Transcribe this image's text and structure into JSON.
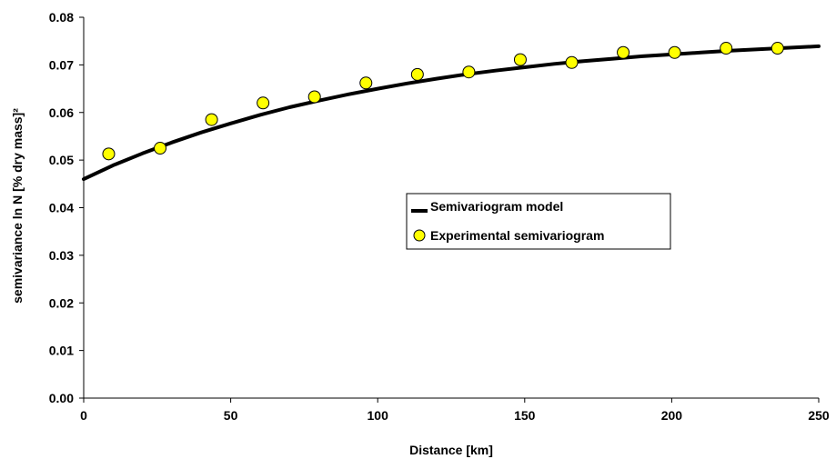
{
  "chart_data": {
    "type": "scatter",
    "xlabel": "Distance [km]",
    "ylabel": "semivariance ln N [% dry mass]²",
    "xlim": [
      0,
      250
    ],
    "ylim": [
      0,
      0.08
    ],
    "x_ticks": [
      "0",
      "50",
      "100",
      "150",
      "200",
      "250"
    ],
    "y_ticks": [
      "0.00",
      "0.01",
      "0.02",
      "0.03",
      "0.04",
      "0.05",
      "0.06",
      "0.07",
      "0.08"
    ],
    "grid": false,
    "legend_position": "center-right",
    "series": [
      {
        "name": "Semivariogram model",
        "kind": "line",
        "color": "#000000",
        "x": [
          0,
          10,
          20,
          30,
          40,
          50,
          60,
          70,
          80,
          90,
          100,
          110,
          120,
          130,
          140,
          150,
          160,
          170,
          180,
          190,
          200,
          210,
          220,
          230,
          240,
          250
        ],
        "y": [
          0.046,
          0.0489,
          0.0514,
          0.0537,
          0.0558,
          0.0577,
          0.0595,
          0.0611,
          0.0625,
          0.0638,
          0.065,
          0.0661,
          0.0671,
          0.068,
          0.0688,
          0.0695,
          0.0702,
          0.0708,
          0.0713,
          0.0718,
          0.0722,
          0.0726,
          0.073,
          0.0733,
          0.0736,
          0.0739
        ]
      },
      {
        "name": "Experimental semivariogram",
        "kind": "markers",
        "color": "#ffff00",
        "x": [
          8.5,
          26,
          43.5,
          61,
          78.5,
          96,
          113.5,
          131,
          148.5,
          166,
          183.5,
          201,
          218.5,
          236
        ],
        "y": [
          0.0513,
          0.0525,
          0.0585,
          0.062,
          0.0633,
          0.0662,
          0.068,
          0.0685,
          0.0711,
          0.0705,
          0.0726,
          0.0726,
          0.0735,
          0.0735
        ]
      }
    ]
  }
}
